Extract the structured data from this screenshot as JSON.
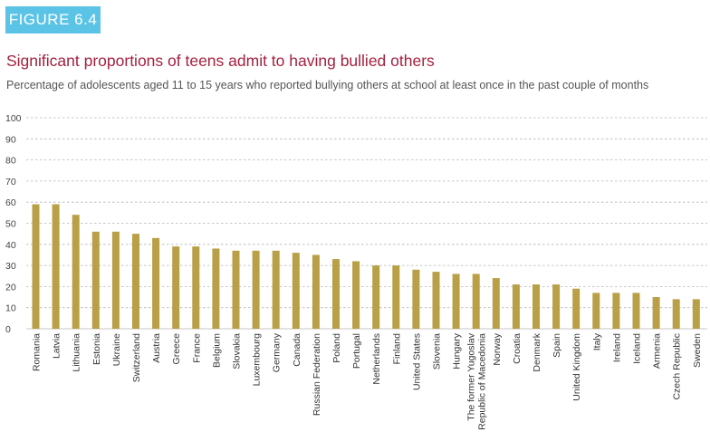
{
  "figure_label": "FIGURE 6.4",
  "colors": {
    "badge": "#5bc4e6",
    "title": "#a5213f",
    "bar": "#b99f45",
    "grid": "#b5b5b5"
  },
  "chart_data": {
    "type": "bar",
    "title": "Significant proportions of teens admit to having bullied others",
    "subtitle": "Percentage of adolescents aged 11 to 15 years who reported bullying others at school at least once in the past couple of months",
    "xlabel": "",
    "ylabel": "",
    "ylim": [
      0,
      100
    ],
    "yticks": [
      0,
      10,
      20,
      30,
      40,
      50,
      60,
      70,
      80,
      90,
      100
    ],
    "grid": true,
    "categories": [
      [
        "Romania"
      ],
      [
        "Latvia"
      ],
      [
        "Lithuania"
      ],
      [
        "Estonia"
      ],
      [
        "Ukraine"
      ],
      [
        "Switzerland"
      ],
      [
        "Austria"
      ],
      [
        "Greece"
      ],
      [
        "France"
      ],
      [
        "Belgium"
      ],
      [
        "Slovakia"
      ],
      [
        "Luxembourg"
      ],
      [
        "Germany"
      ],
      [
        "Canada"
      ],
      [
        "Russian Federation"
      ],
      [
        "Poland"
      ],
      [
        "Portugal"
      ],
      [
        "Netherlands"
      ],
      [
        "Finland"
      ],
      [
        "United States"
      ],
      [
        "Slovenia"
      ],
      [
        "Hungary"
      ],
      [
        "The former Yugoslav",
        "Republic of Macedonia"
      ],
      [
        "Norway"
      ],
      [
        "Croatia"
      ],
      [
        "Denmark"
      ],
      [
        "Spain"
      ],
      [
        "United Kingdom"
      ],
      [
        "Italy"
      ],
      [
        "Ireland"
      ],
      [
        "Iceland"
      ],
      [
        "Armenia"
      ],
      [
        "Czech Republic"
      ],
      [
        "Sweden"
      ]
    ],
    "values": [
      59,
      59,
      54,
      46,
      46,
      45,
      43,
      39,
      39,
      38,
      37,
      37,
      37,
      36,
      35,
      33,
      32,
      30,
      30,
      28,
      27,
      26,
      26,
      24,
      21,
      21,
      21,
      19,
      17,
      17,
      17,
      15,
      14,
      14
    ]
  }
}
